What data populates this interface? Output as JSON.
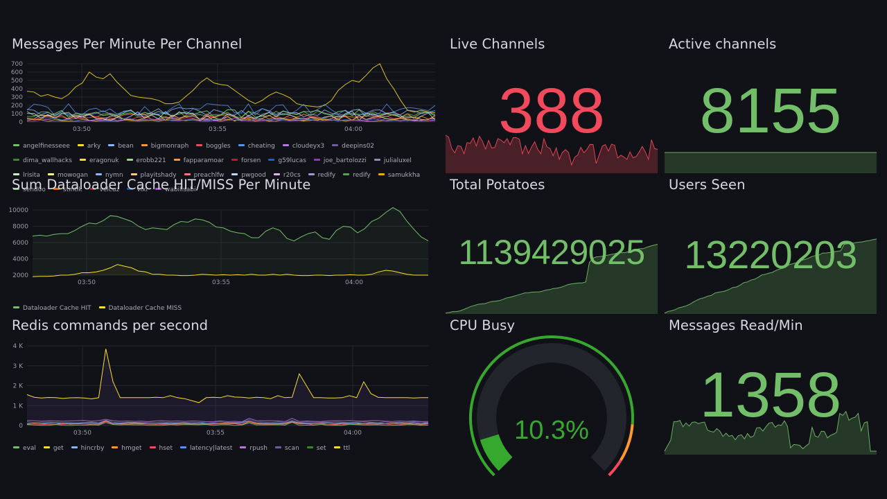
{
  "panels": {
    "messages": {
      "title": "Messages Per Minute Per Channel",
      "yticks": [
        "700",
        "600",
        "500",
        "400",
        "300",
        "200",
        "100",
        "0"
      ],
      "xticks": [
        "03:50",
        "03:55",
        "04:00"
      ],
      "legend": [
        {
          "name": "angelfinesseee",
          "color": "#73bf69"
        },
        {
          "name": "arky",
          "color": "#fade2a"
        },
        {
          "name": "bean",
          "color": "#8ab8ff"
        },
        {
          "name": "bigmonraph",
          "color": "#ff9830"
        },
        {
          "name": "boggles",
          "color": "#f2495c"
        },
        {
          "name": "cheating",
          "color": "#5794f2"
        },
        {
          "name": "cloudeyx3",
          "color": "#b877d9"
        },
        {
          "name": "deepins02",
          "color": "#705da0"
        },
        {
          "name": "dima_wallhacks",
          "color": "#37872d"
        },
        {
          "name": "eragonuk",
          "color": "#fade2a"
        },
        {
          "name": "erobb221",
          "color": "#96d98d"
        },
        {
          "name": "fapparamoar",
          "color": "#ff9830"
        },
        {
          "name": "forsen",
          "color": "#c4162a"
        },
        {
          "name": "g59lucas",
          "color": "#1f60c4"
        },
        {
          "name": "joe_bartolozzi",
          "color": "#8f3bb8"
        },
        {
          "name": "julialuxel",
          "color": "#8e8ab8"
        },
        {
          "name": "lrisita",
          "color": "#c8f2c2"
        },
        {
          "name": "mowogan",
          "color": "#fff899"
        },
        {
          "name": "nymn",
          "color": "#8ab8ff"
        },
        {
          "name": "playitshady",
          "color": "#ffcb7d"
        },
        {
          "name": "preachlfw",
          "color": "#ff7383"
        },
        {
          "name": "pwgood",
          "color": "#c0d8ff"
        },
        {
          "name": "r20cs",
          "color": "#deb6f2"
        },
        {
          "name": "redify",
          "color": "#a396d9"
        },
        {
          "name": "redify",
          "color": "#56a64b"
        },
        {
          "name": "samukkha",
          "color": "#e0b400"
        },
        {
          "name": "send0o",
          "color": "#73bf69"
        },
        {
          "name": "stintik",
          "color": "#fa6400"
        },
        {
          "name": "velcuz",
          "color": "#c4162a"
        },
        {
          "name": "vixl",
          "color": "#1250b0"
        },
        {
          "name": "wabilisabi",
          "color": "#a352cc"
        }
      ]
    },
    "dataloader": {
      "title": "Sum Dataloader Cache HIT/MISS Per Minute",
      "yticks": [
        "10000",
        "8000",
        "6000",
        "4000",
        "2000"
      ],
      "xticks": [
        "03:50",
        "03:55",
        "04:00"
      ],
      "legend": [
        {
          "name": "Dataloader Cache HIT",
          "color": "#73bf69"
        },
        {
          "name": "Dataloader Cache MISS",
          "color": "#fade2a"
        }
      ]
    },
    "redis": {
      "title": "Redis commands per second",
      "yticks": [
        "4 K",
        "3 K",
        "2 K",
        "1 K",
        "0"
      ],
      "xticks": [
        "03:50",
        "03:55",
        "04:00"
      ],
      "legend": [
        {
          "name": "eval",
          "color": "#73bf69"
        },
        {
          "name": "get",
          "color": "#fade2a"
        },
        {
          "name": "hincrby",
          "color": "#8ab8ff"
        },
        {
          "name": "hmget",
          "color": "#ff9830"
        },
        {
          "name": "hset",
          "color": "#f2495c"
        },
        {
          "name": "latency|latest",
          "color": "#5794f2"
        },
        {
          "name": "rpush",
          "color": "#b877d9"
        },
        {
          "name": "scan",
          "color": "#705da0"
        },
        {
          "name": "set",
          "color": "#37872d"
        },
        {
          "name": "ttl",
          "color": "#fade2a"
        }
      ]
    },
    "live": {
      "title": "Live Channels",
      "value": "388",
      "color": "#f2495c"
    },
    "active": {
      "title": "Active channels",
      "value": "8155",
      "color": "#73bf69"
    },
    "potatoes": {
      "title": "Total Potatoes",
      "value": "1139429025",
      "color": "#73bf69"
    },
    "users": {
      "title": "Users Seen",
      "value": "13220203",
      "color": "#73bf69"
    },
    "cpu": {
      "title": "CPU Busy",
      "value": "10.3%",
      "percent": 10.3,
      "color": "#37a82e"
    },
    "msgread": {
      "title": "Messages Read/Min",
      "value": "1358",
      "color": "#73bf69"
    }
  }
}
